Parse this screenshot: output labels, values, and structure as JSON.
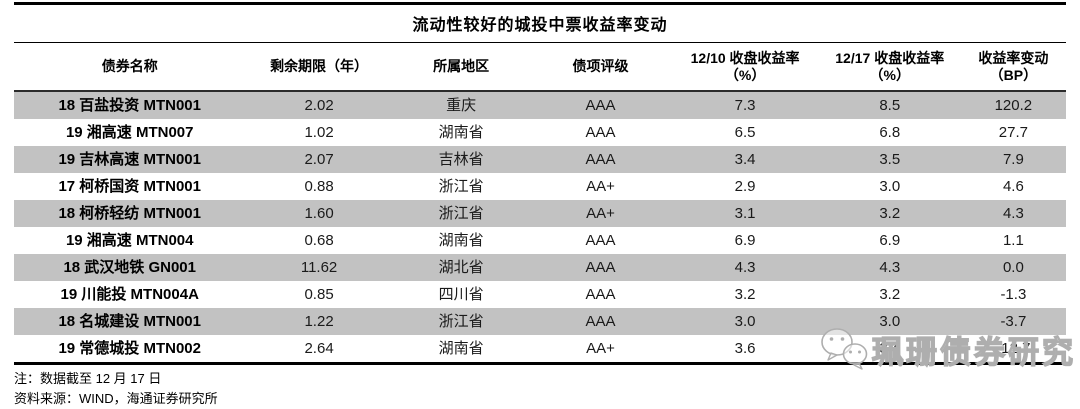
{
  "chart_data": {
    "type": "table",
    "title": "流动性较好的城投中票收益率变动",
    "columns": [
      "债券名称",
      "剩余期限（年）",
      "所属地区",
      "债项评级",
      "12/10 收盘收益率（%）",
      "12/17 收盘收益率（%）",
      "收益率变动（BP）"
    ],
    "rows": [
      [
        "18 百盐投资 MTN001",
        "2.02",
        "重庆",
        "AAA",
        "7.3",
        "8.5",
        "120.2"
      ],
      [
        "19 湘高速 MTN007",
        "1.02",
        "湖南省",
        "AAA",
        "6.5",
        "6.8",
        "27.7"
      ],
      [
        "19 吉林高速 MTN001",
        "2.07",
        "吉林省",
        "AAA",
        "3.4",
        "3.5",
        "7.9"
      ],
      [
        "17 柯桥国资 MTN001",
        "0.88",
        "浙江省",
        "AA+",
        "2.9",
        "3.0",
        "4.6"
      ],
      [
        "18 柯桥轻纺 MTN001",
        "1.60",
        "浙江省",
        "AA+",
        "3.1",
        "3.2",
        "4.3"
      ],
      [
        "19 湘高速 MTN004",
        "0.68",
        "湖南省",
        "AAA",
        "6.9",
        "6.9",
        "1.1"
      ],
      [
        "18 武汉地铁 GN001",
        "11.62",
        "湖北省",
        "AAA",
        "4.3",
        "4.3",
        "0.0"
      ],
      [
        "19 川能投 MTN004A",
        "0.85",
        "四川省",
        "AAA",
        "3.2",
        "3.2",
        "-1.3"
      ],
      [
        "18 名城建设 MTN001",
        "1.22",
        "浙江省",
        "AAA",
        "3.0",
        "3.0",
        "-3.7"
      ],
      [
        "19 常德城投 MTN002",
        "2.64",
        "湖南省",
        "AA+",
        "3.6",
        "3.4",
        "-12.7"
      ]
    ],
    "notes": [
      "注：数据截至 12 月 17 日",
      "资料来源：WIND，海通证券研究所"
    ]
  },
  "header_display": [
    {
      "line1": "债券名称",
      "line2": ""
    },
    {
      "line1": "剩余期限（年）",
      "line2": ""
    },
    {
      "line1": "所属地区",
      "line2": ""
    },
    {
      "line1": "债项评级",
      "line2": ""
    },
    {
      "line1": "12/10 收盘收益率",
      "line2": "（%）"
    },
    {
      "line1": "12/17 收盘收益率",
      "line2": "（%）"
    },
    {
      "line1": "收益率变动",
      "line2": "（BP）"
    }
  ],
  "notes": {
    "line1": "注：数据截至 12 月 17 日",
    "line2": "资料来源：WIND，海通证券研究所"
  },
  "watermark": {
    "text": "珮珊债券研究",
    "icon": "wechat-chat-bubbles-icon"
  },
  "colors": {
    "stripe_gray": "#c2c2c2",
    "rule_black": "#000000",
    "text": "#1a1a1a",
    "watermark_gray": "#aeaeae"
  }
}
